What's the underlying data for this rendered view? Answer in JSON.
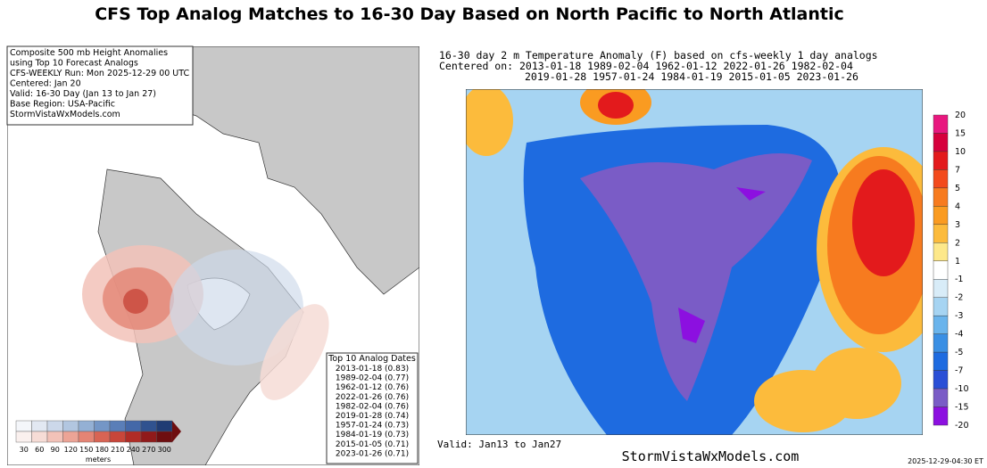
{
  "title": "CFS Top Analog Matches to 16-30 Day Based on North Pacific to North Atlantic",
  "left_panel": {
    "info": [
      "Composite 500 mb Height Anomalies",
      "using Top 10 Forecast Analogs",
      "CFS-WEEKLY Run: Mon 2025-12-29 00 UTC",
      "Centered: Jan 20",
      "Valid: 16-30 Day (Jan 13 to Jan 27)",
      "Base Region: USA-Pacific",
      "StormVistaWxModels.com"
    ],
    "analog_box": {
      "title": "Top 10 Analog Dates",
      "dates": [
        "2013-01-18 (0.83)",
        "1989-02-04 (0.77)",
        "1962-01-12 (0.76)",
        "2022-01-26 (0.76)",
        "1982-02-04 (0.76)",
        "2019-01-28 (0.74)",
        "1957-01-24 (0.73)",
        "1984-01-19 (0.73)",
        "2015-01-05 (0.71)",
        "2023-01-26 (0.71)"
      ]
    },
    "colorbar": {
      "ticks": [
        30,
        60,
        90,
        120,
        150,
        180,
        210,
        240,
        270,
        300
      ],
      "unit": "meters",
      "neg_colors": [
        "#f4f6fa",
        "#e2e8f2",
        "#ccd8ea",
        "#b2c6e0",
        "#94b0d4",
        "#7496c6",
        "#5a7eb8",
        "#4468a8",
        "#30528f",
        "#203c74"
      ],
      "pos_colors": [
        "#faf0ee",
        "#f6dcd6",
        "#f2c2b8",
        "#eca496",
        "#e48474",
        "#d86454",
        "#c8463a",
        "#b02c26",
        "#901a1a",
        "#6e0e10"
      ]
    }
  },
  "right_panel": {
    "header": [
      "16-30 day 2 m Temperature Anomaly (F) based on cfs-weekly 1 day analogs",
      "Centered on: 2013-01-18 1989-02-04 1962-01-12 2022-01-26 1982-02-04",
      "2019-01-28 1957-01-24 1984-01-19 2015-01-05 2023-01-26"
    ],
    "colorbar": {
      "ticks": [
        20,
        15,
        10,
        7,
        5,
        4,
        3,
        2,
        1,
        -1,
        -2,
        -3,
        -4,
        -5,
        -7,
        -10,
        -15,
        -20
      ],
      "colors": [
        "#e8187f",
        "#d6003c",
        "#e31a1c",
        "#f34a1c",
        "#f77b1f",
        "#fa9b21",
        "#fcbb3c",
        "#fde88a",
        "#ffffff",
        "#d8ecf8",
        "#a6d4f2",
        "#6ab4ec",
        "#3a8fe4",
        "#1e6be0",
        "#2a4fd6",
        "#7a5cc6",
        "#8c10e0"
      ]
    },
    "valid": "Valid: Jan13 to Jan27",
    "site": "StormVistaWxModels.com",
    "timestamp": "2025-12-29-04:30 ET"
  }
}
